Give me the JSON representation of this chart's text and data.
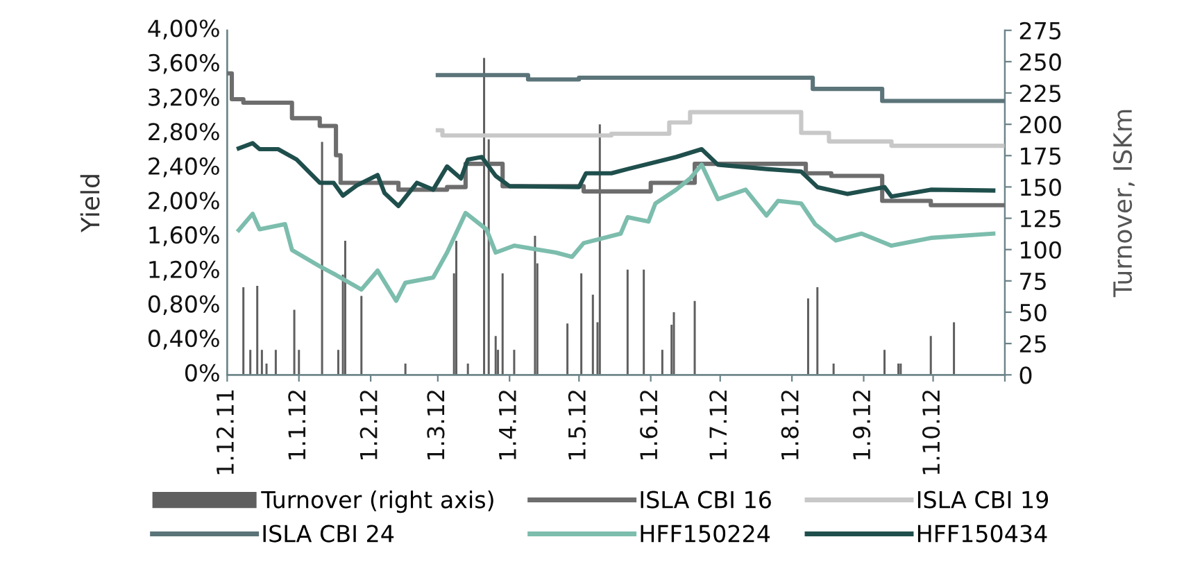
{
  "chart_data": {
    "type": "line",
    "ylabel": "Yield",
    "y2label": "Turnover, ISKm",
    "xlim": [
      "2011-12-01",
      "2012-11-01"
    ],
    "xticks": [
      {
        "value": "2011-12-01",
        "label": "1.12.11"
      },
      {
        "value": "2012-01-01",
        "label": "1.1.12"
      },
      {
        "value": "2012-02-01",
        "label": "1.2.12"
      },
      {
        "value": "2012-03-01",
        "label": "1.3.12"
      },
      {
        "value": "2012-04-01",
        "label": "1.4.12"
      },
      {
        "value": "2012-05-01",
        "label": "1.5.12"
      },
      {
        "value": "2012-06-01",
        "label": "1.6.12"
      },
      {
        "value": "2012-07-01",
        "label": "1.7.12"
      },
      {
        "value": "2012-08-01",
        "label": "1.8.12"
      },
      {
        "value": "2012-09-01",
        "label": "1.9.12"
      },
      {
        "value": "2012-10-01",
        "label": "1.10.12"
      },
      {
        "value": "2012-11-01",
        "label": null
      }
    ],
    "ylim": [
      0,
      4
    ],
    "yticks": [
      {
        "value": 0,
        "label": "0%"
      },
      {
        "value": 0.4,
        "label": "0,40%"
      },
      {
        "value": 0.8,
        "label": "0,80%"
      },
      {
        "value": 1.2,
        "label": "1,20%"
      },
      {
        "value": 1.6,
        "label": "1,60%"
      },
      {
        "value": 2.0,
        "label": "2,00%"
      },
      {
        "value": 2.4,
        "label": "2,40%"
      },
      {
        "value": 2.8,
        "label": "2,80%"
      },
      {
        "value": 3.2,
        "label": "3,20%"
      },
      {
        "value": 3.6,
        "label": "3,60%"
      },
      {
        "value": 4.0,
        "label": "4,00%"
      }
    ],
    "y2lim": [
      0,
      275
    ],
    "y2ticks": [
      0,
      25,
      50,
      75,
      100,
      125,
      150,
      175,
      200,
      225,
      250,
      275
    ],
    "grid": false,
    "legend": "bottom",
    "series": [
      {
        "name": "Turnover (right axis)",
        "type": "bar",
        "axis": "y2",
        "color": "#5f5f5f",
        "x": [
          "2011-12-08",
          "2011-12-11",
          "2011-12-14",
          "2011-12-16",
          "2011-12-18",
          "2011-12-22",
          "2011-12-30",
          "2012-01-01",
          "2012-01-11",
          "2012-01-18",
          "2012-01-20",
          "2012-01-21",
          "2012-01-28",
          "2012-02-16",
          "2012-03-08",
          "2012-03-09",
          "2012-03-14",
          "2012-03-21",
          "2012-03-23",
          "2012-03-26",
          "2012-03-27",
          "2012-03-29",
          "2012-04-03",
          "2012-04-12",
          "2012-04-13",
          "2012-04-26",
          "2012-05-02",
          "2012-05-07",
          "2012-05-09",
          "2012-05-10",
          "2012-05-22",
          "2012-05-29",
          "2012-06-06",
          "2012-06-10",
          "2012-06-11",
          "2012-06-20",
          "2012-08-08",
          "2012-08-12",
          "2012-08-19",
          "2012-09-10",
          "2012-09-16",
          "2012-09-17",
          "2012-09-30",
          "2012-10-10"
        ],
        "values": [
          70,
          20,
          71,
          20,
          9,
          20,
          52,
          20,
          186,
          20,
          80,
          107,
          63,
          9,
          81,
          107,
          9,
          253,
          188,
          31,
          20,
          81,
          20,
          111,
          89,
          41,
          81,
          64,
          42,
          200,
          84,
          84,
          20,
          40,
          50,
          59,
          61,
          70,
          9,
          20,
          9,
          9,
          31,
          42
        ]
      },
      {
        "name": "ISLA CBI 16",
        "type": "step",
        "color": "#6d6d6d",
        "x": [
          "2011-12-01",
          "2011-12-03",
          "2011-12-08",
          "2011-12-29",
          "2012-01-10",
          "2012-01-17",
          "2012-01-19",
          "2012-02-13",
          "2012-03-05",
          "2012-03-13",
          "2012-03-29",
          "2012-05-03",
          "2012-06-01",
          "2012-06-20",
          "2012-08-07",
          "2012-08-18",
          "2012-09-09",
          "2012-09-30",
          "2012-10-31"
        ],
        "values": [
          3.5,
          3.2,
          3.16,
          2.98,
          2.89,
          2.55,
          2.23,
          2.15,
          2.18,
          2.45,
          2.19,
          2.13,
          2.23,
          2.45,
          2.34,
          2.31,
          2.02,
          1.97,
          1.97
        ]
      },
      {
        "name": "ISLA CBI 19",
        "type": "step",
        "color": "#c8c8c8",
        "x": [
          "2012-03-01",
          "2012-03-03",
          "2012-05-15",
          "2012-06-09",
          "2012-06-18",
          "2012-08-05",
          "2012-08-17",
          "2012-09-13",
          "2012-10-31"
        ],
        "values": [
          2.84,
          2.78,
          2.8,
          2.93,
          3.05,
          2.81,
          2.71,
          2.66,
          2.66
        ]
      },
      {
        "name": "ISLA CBI 24",
        "type": "step",
        "color": "#5b7479",
        "x": [
          "2012-03-01",
          "2012-04-09",
          "2012-05-01",
          "2012-08-10",
          "2012-09-09",
          "2012-10-31"
        ],
        "values": [
          3.48,
          3.43,
          3.45,
          3.32,
          3.18,
          3.18
        ]
      },
      {
        "name": "HFF150224",
        "color": "#7cbdad",
        "x": [
          "2011-12-06",
          "2011-12-12",
          "2011-12-15",
          "2011-12-26",
          "2011-12-29",
          "2012-01-10",
          "2012-01-17",
          "2012-01-28",
          "2012-02-04",
          "2012-02-12",
          "2012-02-16",
          "2012-02-28",
          "2012-03-05",
          "2012-03-13",
          "2012-03-22",
          "2012-03-26",
          "2012-04-03",
          "2012-04-21",
          "2012-04-28",
          "2012-05-03",
          "2012-05-19",
          "2012-05-22",
          "2012-05-31",
          "2012-06-03",
          "2012-06-12",
          "2012-06-18",
          "2012-06-23",
          "2012-06-30",
          "2012-07-12",
          "2012-07-21",
          "2012-07-26",
          "2012-08-05",
          "2012-08-11",
          "2012-08-20",
          "2012-08-31",
          "2012-09-13",
          "2012-09-30",
          "2012-10-27"
        ],
        "values": [
          1.68,
          1.87,
          1.69,
          1.75,
          1.45,
          1.26,
          1.16,
          0.99,
          1.21,
          0.86,
          1.07,
          1.13,
          1.42,
          1.88,
          1.69,
          1.42,
          1.5,
          1.42,
          1.37,
          1.53,
          1.64,
          1.83,
          1.78,
          1.99,
          2.15,
          2.28,
          2.44,
          2.04,
          2.15,
          1.85,
          2.02,
          1.99,
          1.75,
          1.56,
          1.64,
          1.5,
          1.59,
          1.64
        ]
      },
      {
        "name": "HFF150434",
        "color": "#1f4f4c",
        "x": [
          "2011-12-06",
          "2011-12-12",
          "2011-12-15",
          "2011-12-23",
          "2011-12-31",
          "2012-01-10",
          "2012-01-16",
          "2012-01-20",
          "2012-01-26",
          "2012-02-01",
          "2012-02-04",
          "2012-02-07",
          "2012-02-13",
          "2012-02-21",
          "2012-02-28",
          "2012-03-05",
          "2012-03-11",
          "2012-03-14",
          "2012-03-20",
          "2012-03-26",
          "2012-04-01",
          "2012-05-01",
          "2012-05-04",
          "2012-05-15",
          "2012-05-22",
          "2012-06-12",
          "2012-06-23",
          "2012-06-30",
          "2012-07-21",
          "2012-08-05",
          "2012-08-12",
          "2012-08-25",
          "2012-09-10",
          "2012-09-13",
          "2012-09-30",
          "2012-10-27"
        ],
        "values": [
          2.63,
          2.69,
          2.62,
          2.62,
          2.5,
          2.23,
          2.23,
          2.08,
          2.2,
          2.28,
          2.32,
          2.11,
          1.96,
          2.23,
          2.15,
          2.42,
          2.28,
          2.5,
          2.53,
          2.31,
          2.19,
          2.18,
          2.34,
          2.34,
          2.39,
          2.53,
          2.62,
          2.44,
          2.39,
          2.36,
          2.18,
          2.1,
          2.18,
          2.07,
          2.15,
          2.14
        ]
      }
    ]
  }
}
